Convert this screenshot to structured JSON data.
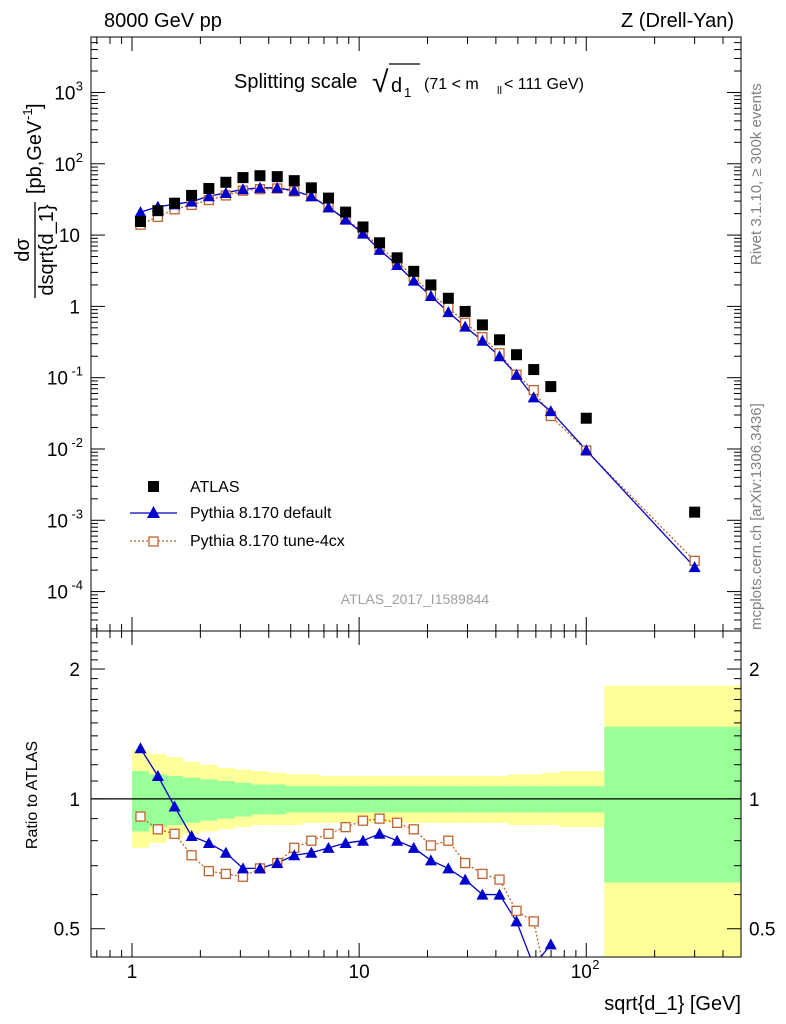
{
  "header": {
    "left": "8000 GeV pp",
    "right": "Z (Drell-Yan)"
  },
  "title": {
    "main": "Splitting scale",
    "sub": "(71 < m",
    "sub_index": "ll",
    "sub_tail": " < 111 GeV)",
    "sqrt_symbol": "√",
    "sqrt_var": "d",
    "sqrt_index": "1"
  },
  "ylabel_top": {
    "num": "dσ",
    "den": "dsqrt{d_1}",
    "unit": "[pb,GeV",
    "unit_sup": "-1",
    "unit_close": "]"
  },
  "ylabel_bottom": "Ratio to ATLAS",
  "xlabel": "sqrt{d_1} [GeV]",
  "side_top": "Rivet 3.1.10, ≥ 300k events",
  "side_bottom": "mcplots.cern.ch [arXiv:1306.3436]",
  "analysis": "ATLAS_2017_I1589844",
  "colors": {
    "data": "#000000",
    "default": "#0000cc",
    "tune": "#c0632d",
    "band_inner": "#99ff99",
    "band_outer": "#ffff99"
  },
  "legend": [
    {
      "label": "ATLAS"
    },
    {
      "label": "Pythia 8.170 default"
    },
    {
      "label": "Pythia 8.170 tune-4cx"
    }
  ],
  "xticks": [
    {
      "v": 1,
      "label": "1",
      "exp": ""
    },
    {
      "v": 10,
      "label": "10",
      "exp": ""
    },
    {
      "v": 100,
      "label": "10",
      "exp": "2"
    }
  ],
  "yticks_top": [
    {
      "v": 0.0001,
      "base": "10",
      "exp": "-4"
    },
    {
      "v": 0.001,
      "base": "10",
      "exp": "-3"
    },
    {
      "v": 0.01,
      "base": "10",
      "exp": "-2"
    },
    {
      "v": 0.1,
      "base": "10",
      "exp": "-1"
    },
    {
      "v": 1,
      "base": "1",
      "exp": ""
    },
    {
      "v": 10,
      "base": "10",
      "exp": ""
    },
    {
      "v": 100,
      "base": "10",
      "exp": "2"
    },
    {
      "v": 1000,
      "base": "10",
      "exp": "3"
    }
  ],
  "yticks_bottom": [
    {
      "v": 0.5,
      "label": "0.5"
    },
    {
      "v": 1,
      "label": "1"
    },
    {
      "v": 2,
      "label": "2"
    }
  ],
  "chart_data": [
    {
      "type": "scatter",
      "xscale": "log",
      "yscale": "log",
      "xlim": [
        0.66,
        480
      ],
      "ylim": [
        2.8e-05,
        6000
      ],
      "x": [
        1.09,
        1.3,
        1.54,
        1.83,
        2.18,
        2.59,
        3.08,
        3.66,
        4.36,
        5.18,
        6.16,
        7.33,
        8.72,
        10.4,
        12.3,
        14.7,
        17.4,
        20.7,
        24.7,
        29.3,
        34.9,
        41.5,
        49.3,
        58.7,
        69.8,
        100,
        300
      ],
      "series": [
        {
          "name": "ATLAS",
          "marker": "square",
          "values": [
            15.5,
            22,
            28,
            36,
            45,
            55,
            64,
            68,
            66,
            58,
            46,
            33,
            21,
            13,
            7.8,
            4.8,
            3.1,
            2.0,
            1.3,
            0.85,
            0.55,
            0.34,
            0.21,
            0.13,
            0.075,
            0.027,
            0.0013
          ]
        },
        {
          "name": "Pythia 8.170 default",
          "marker": "triangle",
          "values": [
            21,
            25,
            27,
            29.5,
            35,
            39,
            44,
            46,
            46,
            42,
            35,
            24.5,
            16.5,
            10.5,
            6.2,
            3.8,
            2.3,
            1.4,
            0.83,
            0.52,
            0.33,
            0.2,
            0.11,
            0.053,
            0.034,
            0.0096,
            0.00022
          ]
        },
        {
          "name": "Pythia 8.170 tune-4cx",
          "marker": "open-square",
          "values": [
            14,
            18,
            23,
            26.5,
            31,
            36,
            42,
            44,
            45,
            41,
            35,
            24.5,
            17,
            11,
            6.9,
            4.2,
            2.6,
            1.5,
            0.96,
            0.59,
            0.37,
            0.22,
            0.11,
            0.067,
            0.029,
            0.0095,
            0.00027
          ]
        }
      ]
    },
    {
      "type": "line",
      "xscale": "log",
      "yscale": "log",
      "xlim": [
        0.66,
        480
      ],
      "ylim": [
        0.43,
        2.45
      ],
      "ylabel": "Ratio to ATLAS",
      "xlabel": "sqrt{d_1} [GeV]",
      "reference": 1,
      "band_inner": {
        "edges": [
          1,
          1.19,
          1.42,
          1.68,
          2.0,
          2.38,
          2.83,
          3.36,
          4.0,
          4.76,
          5.66,
          6.73,
          8.0,
          9.51,
          11.3,
          13.5,
          16.0,
          19.0,
          22.6,
          26.9,
          32.0,
          38.1,
          45.3,
          53.8,
          64.0,
          76.1,
          120,
          480
        ],
        "low": [
          0.84,
          0.86,
          0.87,
          0.88,
          0.89,
          0.9,
          0.91,
          0.92,
          0.92,
          0.93,
          0.93,
          0.93,
          0.93,
          0.93,
          0.93,
          0.93,
          0.93,
          0.93,
          0.93,
          0.93,
          0.93,
          0.93,
          0.93,
          0.93,
          0.93,
          0.93,
          0.64
        ],
        "high": [
          1.16,
          1.14,
          1.13,
          1.12,
          1.11,
          1.1,
          1.09,
          1.08,
          1.08,
          1.07,
          1.07,
          1.07,
          1.07,
          1.07,
          1.07,
          1.07,
          1.07,
          1.07,
          1.07,
          1.07,
          1.07,
          1.07,
          1.07,
          1.07,
          1.07,
          1.07,
          1.47
        ]
      },
      "band_outer": {
        "edges": [
          1,
          1.19,
          1.42,
          1.68,
          2.0,
          2.38,
          2.83,
          3.36,
          4.0,
          4.76,
          5.66,
          6.73,
          8.0,
          9.51,
          11.3,
          13.5,
          16.0,
          19.0,
          22.6,
          26.9,
          32.0,
          38.1,
          45.3,
          53.8,
          64.0,
          76.1,
          120,
          480
        ],
        "low": [
          0.77,
          0.79,
          0.81,
          0.83,
          0.84,
          0.85,
          0.86,
          0.87,
          0.87,
          0.87,
          0.88,
          0.88,
          0.88,
          0.88,
          0.88,
          0.88,
          0.88,
          0.88,
          0.88,
          0.88,
          0.88,
          0.88,
          0.87,
          0.87,
          0.87,
          0.86,
          0.43
        ],
        "high": [
          1.3,
          1.27,
          1.25,
          1.22,
          1.2,
          1.18,
          1.17,
          1.16,
          1.15,
          1.14,
          1.14,
          1.13,
          1.13,
          1.13,
          1.13,
          1.13,
          1.13,
          1.13,
          1.13,
          1.13,
          1.13,
          1.13,
          1.14,
          1.14,
          1.15,
          1.16,
          1.83
        ]
      },
      "x": [
        1.09,
        1.3,
        1.54,
        1.83,
        2.18,
        2.59,
        3.08,
        3.66,
        4.36,
        5.18,
        6.16,
        7.33,
        8.72,
        10.4,
        12.3,
        14.7,
        17.4,
        20.7,
        24.7,
        29.3,
        34.9,
        41.5,
        49.3,
        58.7,
        69.8
      ],
      "series": [
        {
          "name": "Pythia 8.170 default",
          "values": [
            1.31,
            1.13,
            0.96,
            0.82,
            0.79,
            0.75,
            0.69,
            0.69,
            0.71,
            0.74,
            0.75,
            0.77,
            0.79,
            0.8,
            0.83,
            0.8,
            0.77,
            0.72,
            0.69,
            0.65,
            0.6,
            0.6,
            0.52,
            0.41,
            0.46
          ]
        },
        {
          "name": "Pythia 8.170 tune-4cx",
          "values": [
            0.91,
            0.85,
            0.83,
            0.74,
            0.68,
            0.67,
            0.66,
            0.69,
            0.71,
            0.77,
            0.8,
            0.83,
            0.86,
            0.89,
            0.9,
            0.88,
            0.85,
            0.78,
            0.8,
            0.71,
            0.67,
            0.65,
            0.55,
            0.52,
            0.34
          ]
        }
      ]
    }
  ]
}
